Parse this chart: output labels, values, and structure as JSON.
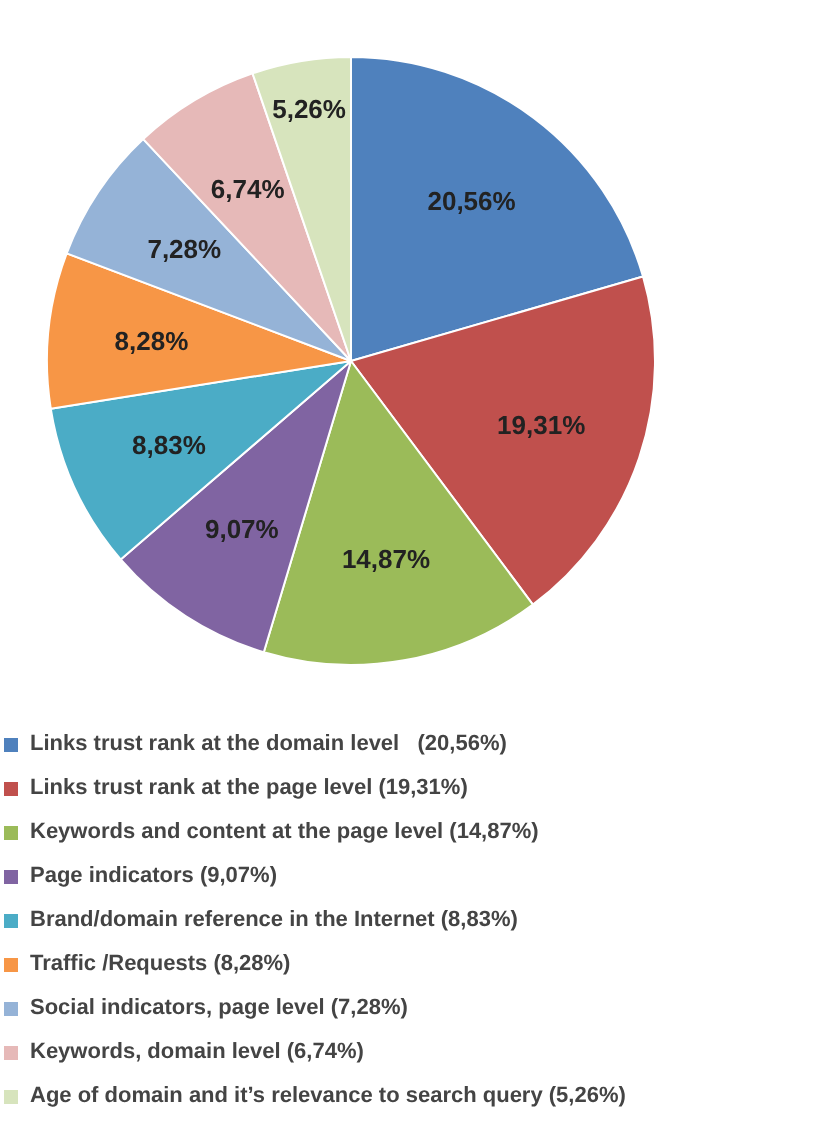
{
  "chart_data": {
    "type": "pie",
    "categories": [
      "Links trust rank at the domain level   (20,56%)",
      "Links trust rank at the page level (19,31%)",
      "Keywords and content at the page level (14,87%)",
      "Page indicators (9,07%)",
      "Brand/domain reference in the Internet (8,83%)",
      "Traffic /Requests (8,28%)",
      "Social indicators, page level (7,28%)",
      "Keywords, domain level (6,74%)",
      "Age of domain and it’s relevance to search query (5,26%)"
    ],
    "values": [
      20.56,
      19.31,
      14.87,
      9.07,
      8.83,
      8.28,
      7.28,
      6.74,
      5.26
    ],
    "colors": [
      "#4f81bd",
      "#c0504d",
      "#9bbb59",
      "#8064a2",
      "#4bacc6",
      "#f79646",
      "#95b3d7",
      "#e6b9b8",
      "#d7e4bd"
    ],
    "value_labels": [
      "20,56%",
      "19,31%",
      "14,87%",
      "9,07%",
      "8,83%",
      "8,28%",
      "7,28%",
      "6,74%",
      "5,26%"
    ],
    "legend": "bottom"
  }
}
